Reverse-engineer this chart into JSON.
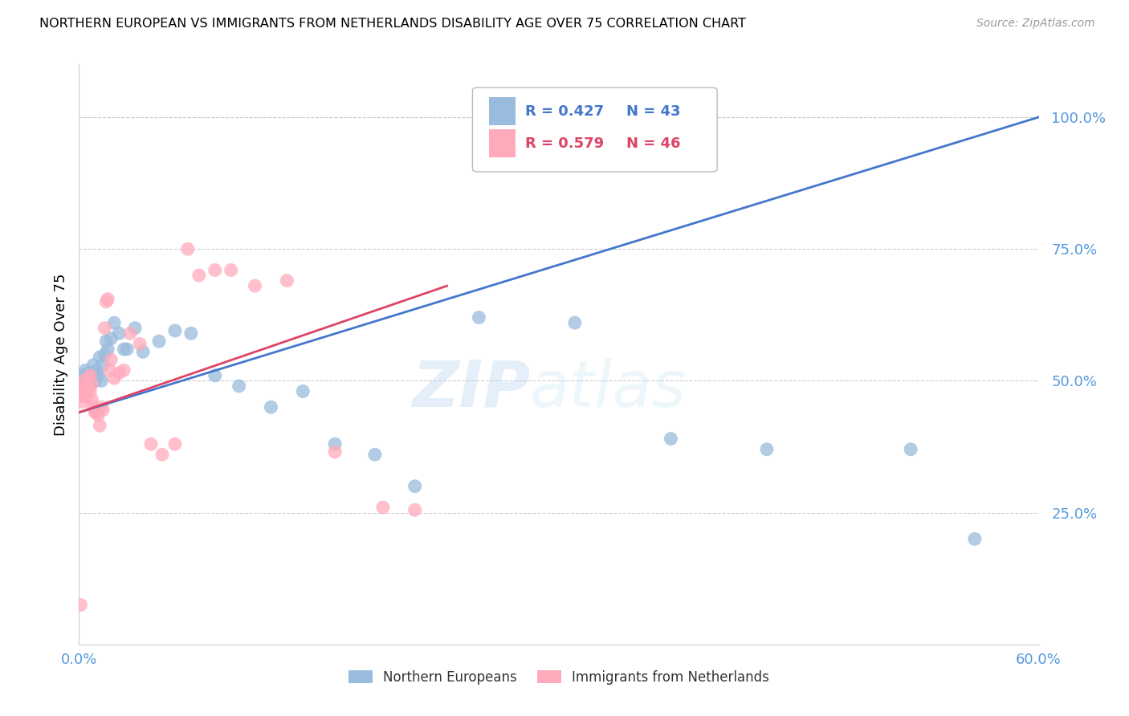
{
  "title": "NORTHERN EUROPEAN VS IMMIGRANTS FROM NETHERLANDS DISABILITY AGE OVER 75 CORRELATION CHART",
  "source": "Source: ZipAtlas.com",
  "ylabel": "Disability Age Over 75",
  "xmin": 0.0,
  "xmax": 0.6,
  "ymin": 0.0,
  "ymax": 1.1,
  "yticks": [
    0.25,
    0.5,
    0.75,
    1.0
  ],
  "ytick_labels": [
    "25.0%",
    "50.0%",
    "75.0%",
    "100.0%"
  ],
  "xticks": [
    0.0,
    0.1,
    0.2,
    0.3,
    0.4,
    0.5,
    0.6
  ],
  "xtick_labels": [
    "0.0%",
    "",
    "",
    "",
    "",
    "",
    "60.0%"
  ],
  "blue_color": "#99bbdd",
  "pink_color": "#ffaabb",
  "blue_line_color": "#4477cc",
  "pink_line_color": "#dd4466",
  "blue_r": 0.427,
  "blue_n": 43,
  "pink_r": 0.579,
  "pink_n": 46,
  "watermark_zip": "ZIP",
  "watermark_atlas": "atlas",
  "axis_color": "#5599dd",
  "grid_color": "#cccccc",
  "blue_scatter_x": [
    0.001,
    0.002,
    0.003,
    0.003,
    0.004,
    0.004,
    0.005,
    0.006,
    0.007,
    0.008,
    0.009,
    0.01,
    0.011,
    0.012,
    0.013,
    0.014,
    0.015,
    0.016,
    0.017,
    0.018,
    0.02,
    0.022,
    0.025,
    0.028,
    0.03,
    0.035,
    0.04,
    0.05,
    0.06,
    0.07,
    0.085,
    0.1,
    0.12,
    0.14,
    0.16,
    0.185,
    0.21,
    0.25,
    0.31,
    0.37,
    0.43,
    0.52,
    0.56
  ],
  "blue_scatter_y": [
    0.49,
    0.51,
    0.48,
    0.5,
    0.52,
    0.495,
    0.505,
    0.515,
    0.49,
    0.51,
    0.53,
    0.5,
    0.52,
    0.51,
    0.545,
    0.5,
    0.53,
    0.55,
    0.575,
    0.56,
    0.58,
    0.61,
    0.59,
    0.56,
    0.56,
    0.6,
    0.555,
    0.575,
    0.595,
    0.59,
    0.51,
    0.49,
    0.45,
    0.48,
    0.38,
    0.36,
    0.3,
    0.62,
    0.61,
    0.39,
    0.37,
    0.37,
    0.2
  ],
  "pink_scatter_x": [
    0.001,
    0.001,
    0.002,
    0.002,
    0.003,
    0.003,
    0.004,
    0.005,
    0.005,
    0.006,
    0.006,
    0.007,
    0.007,
    0.008,
    0.008,
    0.009,
    0.01,
    0.01,
    0.011,
    0.012,
    0.013,
    0.014,
    0.015,
    0.016,
    0.017,
    0.018,
    0.019,
    0.02,
    0.022,
    0.025,
    0.028,
    0.032,
    0.038,
    0.045,
    0.052,
    0.06,
    0.068,
    0.075,
    0.085,
    0.095,
    0.11,
    0.13,
    0.16,
    0.19,
    0.21,
    0.001
  ],
  "pink_scatter_y": [
    0.49,
    0.47,
    0.48,
    0.46,
    0.5,
    0.475,
    0.485,
    0.47,
    0.49,
    0.49,
    0.505,
    0.48,
    0.51,
    0.465,
    0.495,
    0.45,
    0.445,
    0.44,
    0.44,
    0.435,
    0.415,
    0.45,
    0.445,
    0.6,
    0.65,
    0.655,
    0.52,
    0.54,
    0.505,
    0.515,
    0.52,
    0.59,
    0.57,
    0.38,
    0.36,
    0.38,
    0.75,
    0.7,
    0.71,
    0.71,
    0.68,
    0.69,
    0.365,
    0.26,
    0.255,
    0.075
  ],
  "blue_trend_x0": 0.0,
  "blue_trend_x1": 0.6,
  "blue_trend_y0": 0.44,
  "blue_trend_y1": 1.0,
  "pink_trend_x0": 0.0,
  "pink_trend_x1": 0.23,
  "pink_trend_y0": 0.44,
  "pink_trend_y1": 0.68
}
